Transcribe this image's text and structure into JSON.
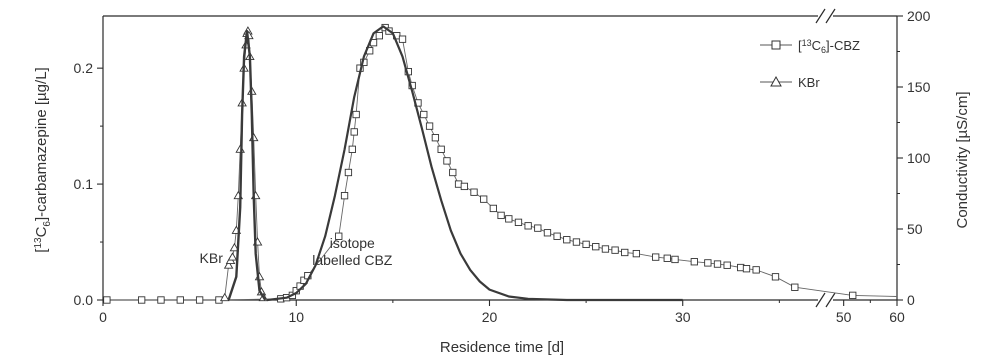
{
  "chart_data": {
    "type": "line",
    "xlabel": "Residence time [d]",
    "ylabel_left": "[13C6]-carbamazepine [µg/L]",
    "ylabel_right": "Conductivity [µS/cm]",
    "x_ticks": [
      "0",
      "10",
      "20",
      "30",
      "50",
      "60"
    ],
    "y_left_ticks": [
      "0.0",
      "0.1",
      "0.2"
    ],
    "y_right_ticks": [
      "0",
      "50",
      "100",
      "150",
      "200"
    ],
    "x_axis_break": "between 35 and 48",
    "annotations": [
      {
        "text": "KBr",
        "x": 5.6,
        "y": 0.032
      },
      {
        "text_lines": [
          "isotope",
          "labelled CBZ"
        ],
        "x": 12.9,
        "y": 0.045
      }
    ],
    "legend": {
      "position": "top-right",
      "entries": [
        {
          "label": "[13C6]-CBZ",
          "marker": "square"
        },
        {
          "label": "KBr",
          "marker": "triangle"
        }
      ]
    },
    "series": [
      {
        "name": "[13C6]-CBZ",
        "axis": "left",
        "marker": "square",
        "points": [
          [
            0.2,
            0.0
          ],
          [
            2.0,
            0.0
          ],
          [
            3.0,
            0.0
          ],
          [
            4.0,
            0.0
          ],
          [
            5.0,
            0.0
          ],
          [
            6.0,
            0.0
          ],
          [
            9.2,
            0.001
          ],
          [
            9.5,
            0.002
          ],
          [
            9.8,
            0.004
          ],
          [
            10.0,
            0.008
          ],
          [
            10.2,
            0.012
          ],
          [
            10.4,
            0.017
          ],
          [
            10.6,
            0.021
          ],
          [
            12.2,
            0.055
          ],
          [
            12.5,
            0.09
          ],
          [
            12.7,
            0.11
          ],
          [
            12.9,
            0.13
          ],
          [
            13.0,
            0.145
          ],
          [
            13.1,
            0.16
          ],
          [
            13.3,
            0.2
          ],
          [
            13.5,
            0.205
          ],
          [
            13.8,
            0.215
          ],
          [
            14.0,
            0.222
          ],
          [
            14.3,
            0.228
          ],
          [
            14.6,
            0.235
          ],
          [
            14.8,
            0.232
          ],
          [
            15.2,
            0.228
          ],
          [
            15.5,
            0.225
          ],
          [
            15.8,
            0.197
          ],
          [
            16.0,
            0.185
          ],
          [
            16.3,
            0.17
          ],
          [
            16.6,
            0.16
          ],
          [
            16.9,
            0.15
          ],
          [
            17.2,
            0.14
          ],
          [
            17.5,
            0.13
          ],
          [
            17.8,
            0.12
          ],
          [
            18.1,
            0.11
          ],
          [
            18.4,
            0.1
          ],
          [
            18.7,
            0.098
          ],
          [
            19.2,
            0.093
          ],
          [
            19.7,
            0.087
          ],
          [
            20.2,
            0.079
          ],
          [
            20.6,
            0.073
          ],
          [
            21.0,
            0.07
          ],
          [
            21.5,
            0.067
          ],
          [
            22.0,
            0.064
          ],
          [
            22.5,
            0.062
          ],
          [
            23.0,
            0.058
          ],
          [
            23.5,
            0.055
          ],
          [
            24.0,
            0.052
          ],
          [
            24.5,
            0.05
          ],
          [
            25.0,
            0.048
          ],
          [
            25.5,
            0.046
          ],
          [
            26.0,
            0.044
          ],
          [
            26.5,
            0.043
          ],
          [
            27.0,
            0.041
          ],
          [
            27.6,
            0.04
          ],
          [
            28.6,
            0.037
          ],
          [
            29.2,
            0.036
          ],
          [
            29.6,
            0.035
          ],
          [
            30.6,
            0.033
          ],
          [
            31.3,
            0.032
          ],
          [
            31.8,
            0.031
          ],
          [
            32.3,
            0.03
          ],
          [
            33.0,
            0.028
          ],
          [
            33.3,
            0.027
          ],
          [
            33.8,
            0.026
          ],
          [
            34.8,
            0.02
          ],
          [
            35.8,
            0.011
          ],
          [
            51.7,
            0.004
          ]
        ],
        "end_point": [
          60,
          0.003
        ]
      },
      {
        "name": "KBr",
        "axis": "left",
        "marker": "triangle",
        "points": [
          [
            6.3,
            0.002
          ],
          [
            6.5,
            0.03
          ],
          [
            6.6,
            0.034
          ],
          [
            6.7,
            0.037
          ],
          [
            6.8,
            0.045
          ],
          [
            6.9,
            0.06
          ],
          [
            7.0,
            0.09
          ],
          [
            7.1,
            0.13
          ],
          [
            7.2,
            0.17
          ],
          [
            7.3,
            0.2
          ],
          [
            7.4,
            0.22
          ],
          [
            7.45,
            0.23
          ],
          [
            7.5,
            0.232
          ],
          [
            7.55,
            0.228
          ],
          [
            7.6,
            0.21
          ],
          [
            7.7,
            0.18
          ],
          [
            7.8,
            0.14
          ],
          [
            7.9,
            0.09
          ],
          [
            8.0,
            0.05
          ],
          [
            8.1,
            0.02
          ],
          [
            8.2,
            0.007
          ],
          [
            8.3,
            0.002
          ]
        ]
      },
      {
        "name": "",
        "axis": "left",
        "marker": "none",
        "points": [
          [
            6.5,
            0.0
          ],
          [
            6.9,
            0.02
          ],
          [
            7.1,
            0.08
          ],
          [
            7.2,
            0.16
          ],
          [
            7.3,
            0.21
          ],
          [
            7.45,
            0.232
          ],
          [
            7.6,
            0.21
          ],
          [
            7.7,
            0.16
          ],
          [
            7.8,
            0.09
          ],
          [
            7.9,
            0.04
          ],
          [
            8.1,
            0.008
          ],
          [
            8.4,
            0.0
          ]
        ]
      },
      {
        "name": "",
        "axis": "left",
        "marker": "none",
        "points": [
          [
            8.5,
            0.0
          ],
          [
            9.5,
            0.002
          ],
          [
            10.0,
            0.006
          ],
          [
            10.5,
            0.014
          ],
          [
            11.0,
            0.03
          ],
          [
            11.5,
            0.055
          ],
          [
            12.0,
            0.09
          ],
          [
            12.5,
            0.13
          ],
          [
            13.0,
            0.175
          ],
          [
            13.5,
            0.21
          ],
          [
            14.0,
            0.23
          ],
          [
            14.5,
            0.236
          ],
          [
            15.0,
            0.23
          ],
          [
            15.5,
            0.21
          ],
          [
            16.0,
            0.18
          ],
          [
            16.5,
            0.148
          ],
          [
            17.0,
            0.115
          ],
          [
            17.5,
            0.086
          ],
          [
            18.0,
            0.06
          ],
          [
            18.5,
            0.04
          ],
          [
            19.0,
            0.026
          ],
          [
            19.5,
            0.016
          ],
          [
            20.0,
            0.009
          ],
          [
            21.0,
            0.003
          ],
          [
            22.0,
            0.001
          ],
          [
            24.0,
            0.0
          ],
          [
            30.0,
            0.0
          ]
        ]
      }
    ],
    "ylim_left": [
      0,
      0.245
    ],
    "ylim_right": [
      0,
      200
    ],
    "grid": false
  }
}
